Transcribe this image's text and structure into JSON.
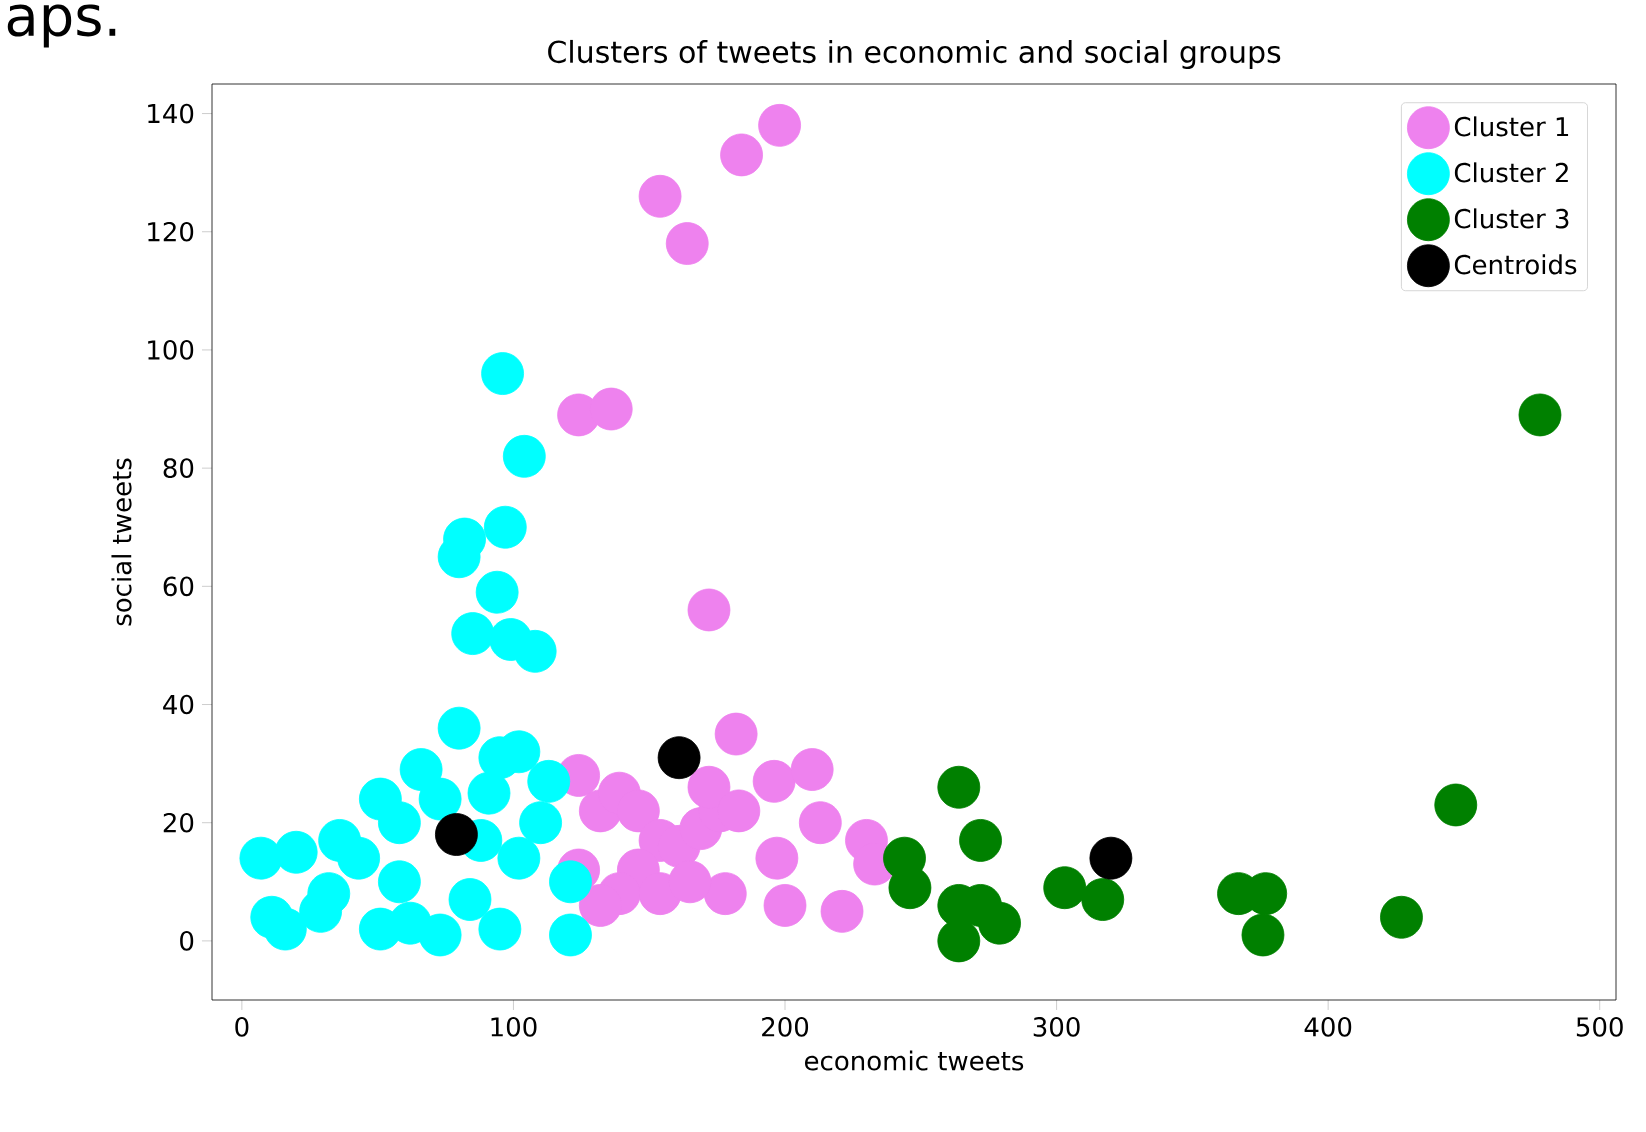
{
  "chart_data": {
    "type": "scatter",
    "title": "Clusters of tweets in economic and social groups",
    "xlabel": "economic tweets",
    "ylabel": "social tweets",
    "annotations": [
      "aps."
    ],
    "xlim": [
      -11,
      506
    ],
    "ylim": [
      -10,
      145
    ],
    "xticks": [
      0,
      100,
      200,
      300,
      400,
      500
    ],
    "yticks": [
      0,
      20,
      40,
      60,
      80,
      100,
      120,
      140
    ],
    "grid": false,
    "legend": "top right",
    "marker": "circle",
    "series": [
      {
        "name": "Cluster 1",
        "color": "#ee82ee",
        "x": [
          198,
          184,
          154,
          164,
          124,
          136,
          172,
          182,
          196,
          210,
          213,
          197,
          200,
          221,
          230,
          233,
          178,
          124,
          132,
          139,
          146,
          154,
          161,
          169,
          176,
          146,
          139,
          132,
          154,
          165,
          124,
          172,
          183
        ],
        "values": [
          138,
          133,
          126,
          118,
          89,
          90,
          56,
          35,
          27,
          29,
          20,
          14,
          6,
          5,
          17,
          13,
          8,
          28,
          22,
          25,
          22,
          17,
          16,
          19,
          22,
          12,
          8,
          6,
          8,
          10,
          12,
          26,
          22
        ]
      },
      {
        "name": "Cluster 2",
        "color": "#00ffff",
        "x": [
          96,
          104,
          82,
          80,
          97,
          94,
          85,
          99,
          108,
          11,
          20,
          16,
          36,
          51,
          66,
          80,
          102,
          113,
          121,
          121,
          95,
          73,
          51,
          29,
          58,
          88,
          102,
          43,
          73,
          91,
          110,
          32,
          62,
          84,
          95,
          58,
          7
        ],
        "values": [
          96,
          82,
          68,
          65,
          70,
          59,
          52,
          51,
          49,
          4,
          15,
          2,
          17,
          24,
          29,
          36,
          32,
          27,
          10,
          1,
          2,
          1,
          2,
          5,
          10,
          17,
          14,
          14,
          24,
          25,
          20,
          8,
          3,
          7,
          31,
          20,
          14
        ]
      },
      {
        "name": "Cluster 3",
        "color": "#008000",
        "x": [
          478,
          447,
          427,
          367,
          377,
          376,
          303,
          317,
          264,
          272,
          244,
          246,
          264,
          264,
          279,
          272
        ],
        "values": [
          89,
          23,
          4,
          8,
          8,
          1,
          9,
          7,
          26,
          17,
          14,
          9,
          6,
          0,
          3,
          6
        ]
      },
      {
        "name": "Centroids",
        "color": "#000000",
        "x": [
          79,
          161,
          320
        ],
        "values": [
          18,
          31,
          14
        ]
      }
    ]
  }
}
